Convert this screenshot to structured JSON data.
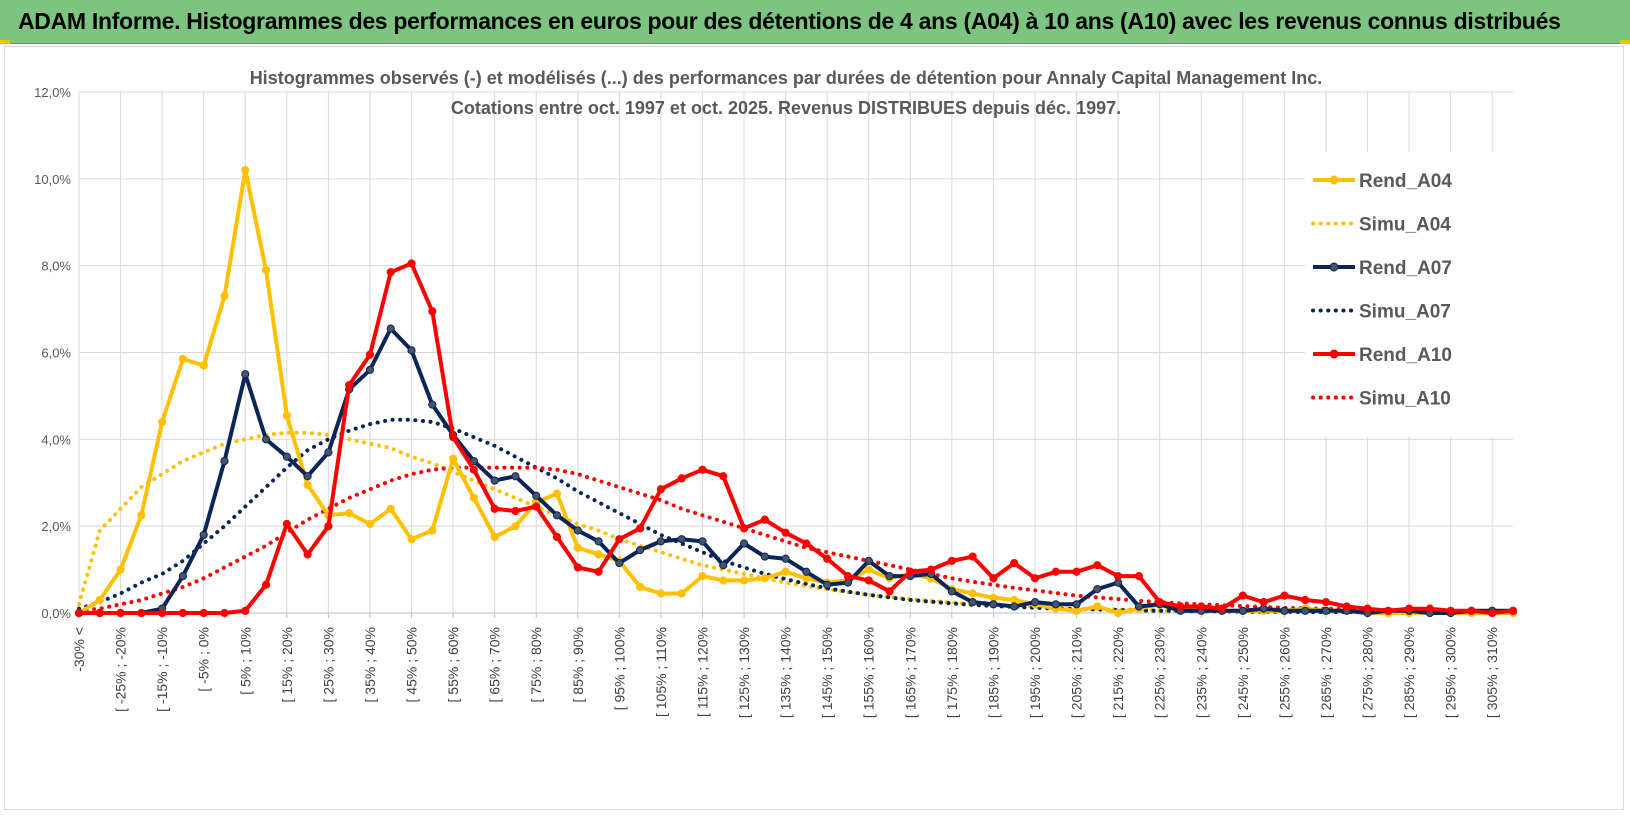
{
  "banner": {
    "title": "ADAM Informe. Histogrammes des performances en euros pour des détentions de 4 ans (A04) à 10 ans (A10) avec les revenus connus distribués"
  },
  "colors": {
    "banner_bg": "#7cc47f",
    "A04": "#ffc000",
    "A07": "#0b2559",
    "A10": "#ff0000",
    "grid": "#d9d9d9"
  },
  "chart_data": {
    "type": "line",
    "title": "Histogrammes observés (-) et modélisés (...) des performances par durées de détention pour Annaly Capital Management Inc.",
    "subtitle": "Cotations entre oct. 1997 et oct. 2025. Revenus DISTRIBUES depuis déc. 1997.",
    "xlabel": "",
    "ylabel": "",
    "ylim": [
      0,
      12
    ],
    "y_ticks": [
      "0,0%",
      "2,0%",
      "4,0%",
      "6,0%",
      "8,0%",
      "10,0%",
      "12,0%"
    ],
    "grid": true,
    "legend_position": "right",
    "tick_labels": [
      "-30% <",
      "[ -25% ; -20%",
      "[ -15% ; -10%",
      "[ -5% ; 0%",
      "[ 5% ; 10%",
      "[ 15% ; 20%",
      "[ 25% ; 30%",
      "[ 35% ; 40%",
      "[ 45% ; 50%",
      "[ 55% ; 60%",
      "[ 65% ; 70%",
      "[ 75% ; 80%",
      "[ 85% ; 90%",
      "[ 95% ; 100%",
      "[ 105% ; 110%",
      "[ 115% ; 120%",
      "[ 125% ; 130%",
      "[ 135% ; 140%",
      "[ 145% ; 150%",
      "[ 155% ; 160%",
      "[ 165% ; 170%",
      "[ 175% ; 180%",
      "[ 185% ; 190%",
      "[ 195% ; 200%",
      "[ 205% ; 210%",
      "[ 215% ; 220%",
      "[ 225% ; 230%",
      "[ 235% ; 240%",
      "[ 245% ; 250%",
      "[ 255% ; 260%",
      "[ 265% ; 270%",
      "[ 275% ; 280%",
      "[ 285% ; 290%",
      "[ 295% ; 300%",
      "[ 305% ; 310%"
    ],
    "series": [
      {
        "name": "Rend_A04",
        "style": "solid",
        "values": [
          0.0,
          0.3,
          1.0,
          2.25,
          4.4,
          5.85,
          5.7,
          7.3,
          10.2,
          7.9,
          4.55,
          2.95,
          2.25,
          2.3,
          2.05,
          2.4,
          1.7,
          1.9,
          3.55,
          2.65,
          1.75,
          2.0,
          2.55,
          2.75,
          1.5,
          1.35,
          1.2,
          0.6,
          0.45,
          0.45,
          0.85,
          0.75,
          0.75,
          0.8,
          0.95,
          0.8,
          0.7,
          0.75,
          1.0,
          0.8,
          0.9,
          0.8,
          0.55,
          0.45,
          0.35,
          0.3,
          0.2,
          0.1,
          0.05,
          0.15,
          0.0,
          0.1,
          0.2,
          0.15,
          0.1,
          0.05,
          0.05,
          0.05,
          0.05,
          0.1,
          0.05,
          0.05,
          0.0,
          0.0,
          0.0,
          0.0,
          0.0,
          0.0,
          0.0,
          0.0
        ]
      },
      {
        "name": "Simu_A04",
        "style": "dotted",
        "values": [
          0.2,
          1.9,
          2.4,
          2.9,
          3.2,
          3.5,
          3.7,
          3.9,
          4.0,
          4.1,
          4.15,
          4.15,
          4.1,
          4.0,
          3.9,
          3.8,
          3.6,
          3.45,
          3.25,
          3.05,
          2.85,
          2.65,
          2.45,
          2.25,
          2.05,
          1.9,
          1.7,
          1.55,
          1.4,
          1.25,
          1.1,
          1.0,
          0.9,
          0.8,
          0.7,
          0.62,
          0.55,
          0.48,
          0.42,
          0.37,
          0.32,
          0.28,
          0.24,
          0.21,
          0.18,
          0.16,
          0.14,
          0.12,
          0.1,
          0.09,
          0.08,
          0.07,
          0.06,
          0.05,
          0.05,
          0.04,
          0.04,
          0.03,
          0.03,
          0.03,
          0.02,
          0.02,
          0.02,
          0.02,
          0.02,
          0.01,
          0.01,
          0.01,
          0.01,
          0.01
        ]
      },
      {
        "name": "Rend_A07",
        "style": "solid",
        "values": [
          0.0,
          0.0,
          0.0,
          0.0,
          0.1,
          0.85,
          1.8,
          3.5,
          5.5,
          4.0,
          3.6,
          3.15,
          3.7,
          5.15,
          5.6,
          6.55,
          6.05,
          4.8,
          4.1,
          3.5,
          3.05,
          3.15,
          2.7,
          2.25,
          1.9,
          1.65,
          1.15,
          1.45,
          1.65,
          1.7,
          1.65,
          1.1,
          1.6,
          1.3,
          1.25,
          0.95,
          0.65,
          0.7,
          1.2,
          0.85,
          0.85,
          0.9,
          0.5,
          0.25,
          0.2,
          0.15,
          0.25,
          0.2,
          0.2,
          0.55,
          0.7,
          0.15,
          0.2,
          0.05,
          0.05,
          0.05,
          0.05,
          0.1,
          0.05,
          0.05,
          0.05,
          0.05,
          0.0,
          0.05,
          0.05,
          0.0,
          0.0,
          0.05,
          0.05,
          0.05
        ]
      },
      {
        "name": "Simu_A07",
        "style": "dotted",
        "values": [
          0.1,
          0.25,
          0.45,
          0.7,
          0.9,
          1.2,
          1.6,
          2.0,
          2.45,
          2.9,
          3.35,
          3.75,
          4.0,
          4.2,
          4.35,
          4.45,
          4.45,
          4.4,
          4.25,
          4.05,
          3.85,
          3.6,
          3.35,
          3.1,
          2.8,
          2.55,
          2.3,
          2.05,
          1.8,
          1.6,
          1.4,
          1.2,
          1.05,
          0.9,
          0.78,
          0.67,
          0.57,
          0.49,
          0.42,
          0.36,
          0.3,
          0.26,
          0.22,
          0.19,
          0.16,
          0.14,
          0.12,
          0.1,
          0.09,
          0.08,
          0.07,
          0.06,
          0.05,
          0.05,
          0.04,
          0.04,
          0.03,
          0.03,
          0.03,
          0.02,
          0.02,
          0.02,
          0.02,
          0.02,
          0.01,
          0.01,
          0.01,
          0.01,
          0.01,
          0.01
        ]
      },
      {
        "name": "Rend_A10",
        "style": "solid",
        "values": [
          0.0,
          0.0,
          0.0,
          0.0,
          0.0,
          0.0,
          0.0,
          0.0,
          0.05,
          0.65,
          2.05,
          1.35,
          2.0,
          5.25,
          5.95,
          7.85,
          8.05,
          6.95,
          4.05,
          3.3,
          2.4,
          2.35,
          2.45,
          1.75,
          1.05,
          0.95,
          1.7,
          1.95,
          2.85,
          3.1,
          3.3,
          3.15,
          1.95,
          2.15,
          1.85,
          1.6,
          1.25,
          0.85,
          0.75,
          0.5,
          0.95,
          1.0,
          1.2,
          1.3,
          0.8,
          1.15,
          0.8,
          0.95,
          0.95,
          1.1,
          0.85,
          0.85,
          0.25,
          0.15,
          0.15,
          0.1,
          0.4,
          0.25,
          0.4,
          0.3,
          0.25,
          0.15,
          0.1,
          0.05,
          0.1,
          0.1,
          0.05,
          0.05,
          0.0,
          0.05
        ]
      },
      {
        "name": "Simu_A10",
        "style": "dotted",
        "values": [
          0.05,
          0.1,
          0.2,
          0.3,
          0.45,
          0.6,
          0.8,
          1.05,
          1.3,
          1.55,
          1.85,
          2.15,
          2.4,
          2.65,
          2.85,
          3.05,
          3.2,
          3.3,
          3.35,
          3.35,
          3.35,
          3.35,
          3.35,
          3.3,
          3.2,
          3.05,
          2.9,
          2.75,
          2.6,
          2.4,
          2.25,
          2.1,
          1.95,
          1.8,
          1.65,
          1.5,
          1.4,
          1.3,
          1.2,
          1.1,
          1.0,
          0.9,
          0.8,
          0.72,
          0.65,
          0.58,
          0.52,
          0.46,
          0.4,
          0.36,
          0.32,
          0.28,
          0.25,
          0.22,
          0.2,
          0.18,
          0.16,
          0.14,
          0.12,
          0.11,
          0.1,
          0.09,
          0.08,
          0.07,
          0.06,
          0.05,
          0.05,
          0.04,
          0.04,
          0.03
        ]
      }
    ]
  }
}
